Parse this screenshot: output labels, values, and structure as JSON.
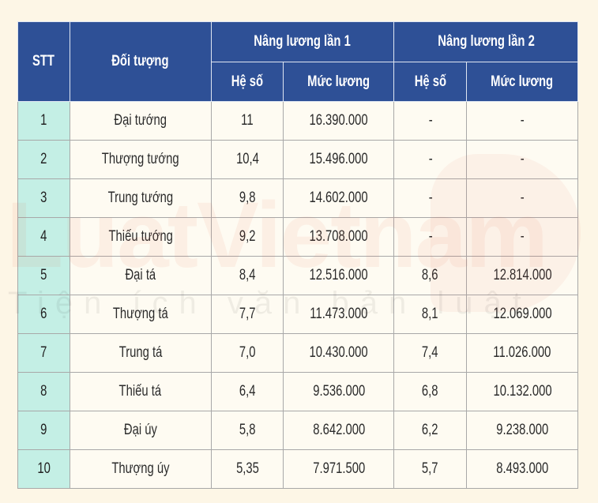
{
  "table": {
    "headers": {
      "stt": "STT",
      "doi_tuong": "Đối tượng",
      "group1": "Nâng lương lần 1",
      "group2": "Nâng lương lần 2",
      "he_so_1": "Hệ số",
      "muc_luong_1": "Mức lương",
      "he_so_2": "Hệ số",
      "muc_luong_2": "Mức lương"
    },
    "rows": [
      {
        "stt": "1",
        "doi_tuong": "Đại tướng",
        "he_so_1": "11",
        "muc_luong_1": "16.390.000",
        "he_so_2": "-",
        "muc_luong_2": "-"
      },
      {
        "stt": "2",
        "doi_tuong": "Thượng tướng",
        "he_so_1": "10,4",
        "muc_luong_1": "15.496.000",
        "he_so_2": "-",
        "muc_luong_2": "-"
      },
      {
        "stt": "3",
        "doi_tuong": "Trung tướng",
        "he_so_1": "9,8",
        "muc_luong_1": "14.602.000",
        "he_so_2": "-",
        "muc_luong_2": "-"
      },
      {
        "stt": "4",
        "doi_tuong": "Thiếu tướng",
        "he_so_1": "9,2",
        "muc_luong_1": "13.708.000",
        "he_so_2": "-",
        "muc_luong_2": "-"
      },
      {
        "stt": "5",
        "doi_tuong": "Đại tá",
        "he_so_1": "8,4",
        "muc_luong_1": "12.516.000",
        "he_so_2": "8,6",
        "muc_luong_2": "12.814.000"
      },
      {
        "stt": "6",
        "doi_tuong": "Thượng tá",
        "he_so_1": "7,7",
        "muc_luong_1": "11.473.000",
        "he_so_2": "8,1",
        "muc_luong_2": "12.069.000"
      },
      {
        "stt": "7",
        "doi_tuong": "Trung tá",
        "he_so_1": "7,0",
        "muc_luong_1": "10.430.000",
        "he_so_2": "7,4",
        "muc_luong_2": "11.026.000"
      },
      {
        "stt": "8",
        "doi_tuong": "Thiếu tá",
        "he_so_1": "6,4",
        "muc_luong_1": "9.536.000",
        "he_so_2": "6,8",
        "muc_luong_2": "10.132.000"
      },
      {
        "stt": "9",
        "doi_tuong": "Đại úy",
        "he_so_1": "5,8",
        "muc_luong_1": "8.642.000",
        "he_so_2": "6,2",
        "muc_luong_2": "9.238.000"
      },
      {
        "stt": "10",
        "doi_tuong": "Thượng úy",
        "he_so_1": "5,35",
        "muc_luong_1": "7.971.500",
        "he_so_2": "5,7",
        "muc_luong_2": "8.493.000"
      }
    ]
  },
  "watermark": {
    "brand": "LuatVietnam",
    "tagline": "Tiện ích văn bản luật"
  },
  "colors": {
    "header_bg": "#2e5096",
    "stt_bg": "#c4efe5",
    "page_bg": "#fdf6e6",
    "cell_bg": "#fefbf2"
  }
}
